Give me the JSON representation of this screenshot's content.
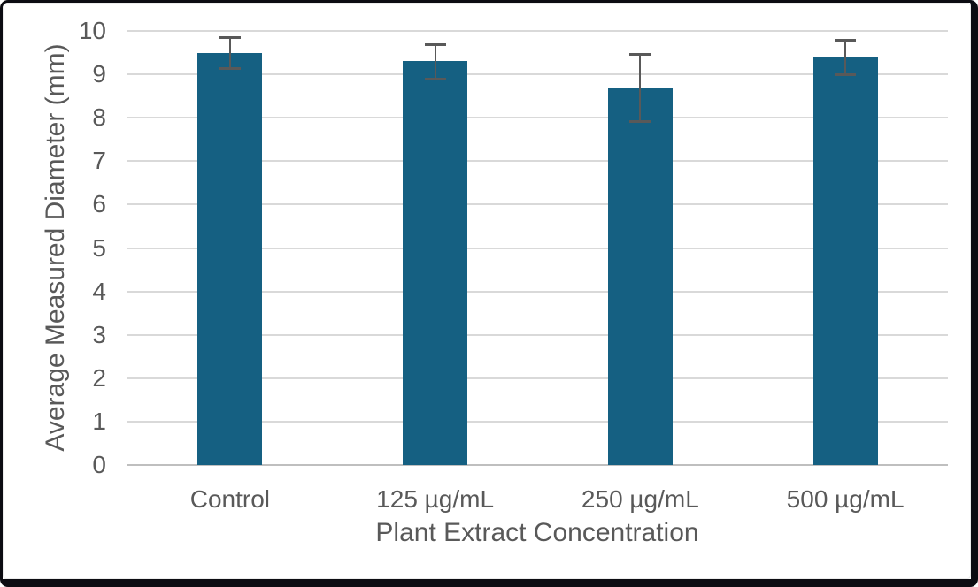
{
  "chart_data": {
    "type": "bar",
    "title": "",
    "categories": [
      "Control",
      "125 µg/mL",
      "250 µg/mL",
      "500 µg/mL"
    ],
    "values": [
      9.5,
      9.3,
      8.7,
      9.4
    ],
    "error_bars": [
      0.35,
      0.4,
      0.78,
      0.4
    ],
    "xlabel": "Plant Extract Concentration",
    "ylabel": "Average Measured Diameter (mm)",
    "ylim": [
      0,
      10
    ],
    "ytick_step": 1,
    "grid": true,
    "legend": false,
    "colors": {
      "bar": "#156082",
      "error_bar": "#595959",
      "text": "#595959",
      "gridline": "#D9D9D9",
      "axis_line": "#BFBFBF",
      "background": "#FFFFFF",
      "frame_border": "#0C0C12"
    }
  }
}
